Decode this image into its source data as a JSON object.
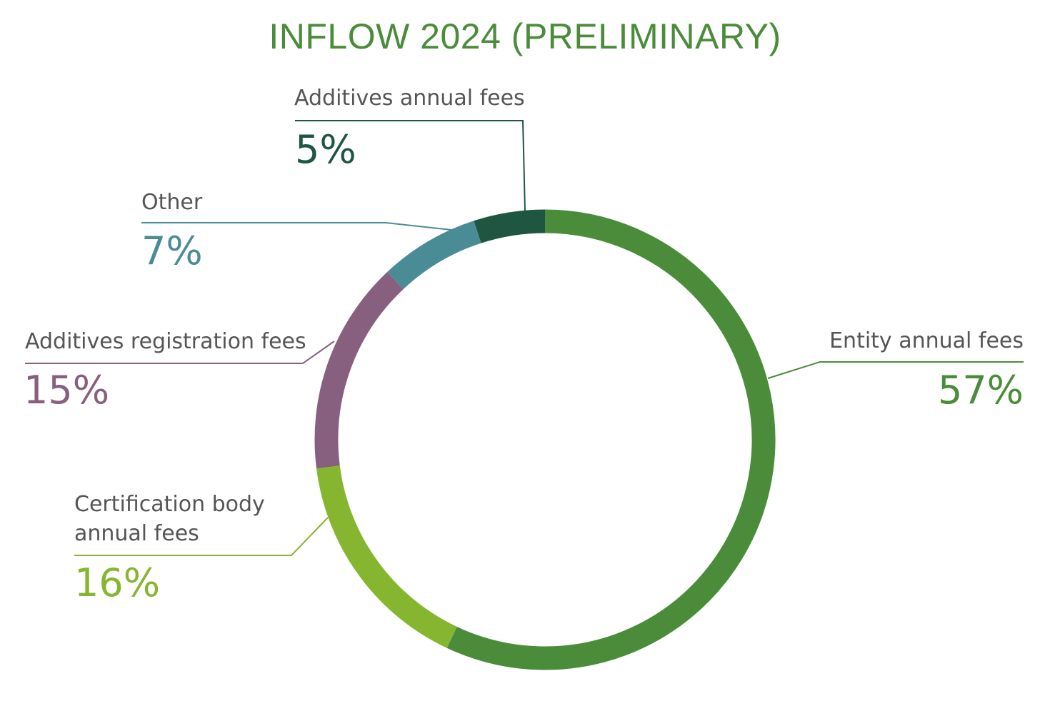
{
  "chart_data": {
    "type": "pie",
    "title": "INFLOW 2024 (PRELIMINARY)",
    "slices": [
      {
        "label": "Entity annual fees",
        "value": 57,
        "value_label": "57%",
        "color": "#4a8c3a"
      },
      {
        "label": "Certification body annual fees",
        "label_lines": [
          "Certification body",
          "annual fees"
        ],
        "value": 16,
        "value_label": "16%",
        "color": "#86b52f"
      },
      {
        "label": "Additives registration fees",
        "value": 15,
        "value_label": "15%",
        "color": "#87607f"
      },
      {
        "label": "Other",
        "value": 7,
        "value_label": "7%",
        "color": "#4a8c96"
      },
      {
        "label": "Additives annual fees",
        "value": 5,
        "value_label": "5%",
        "color": "#1f5642"
      }
    ]
  }
}
